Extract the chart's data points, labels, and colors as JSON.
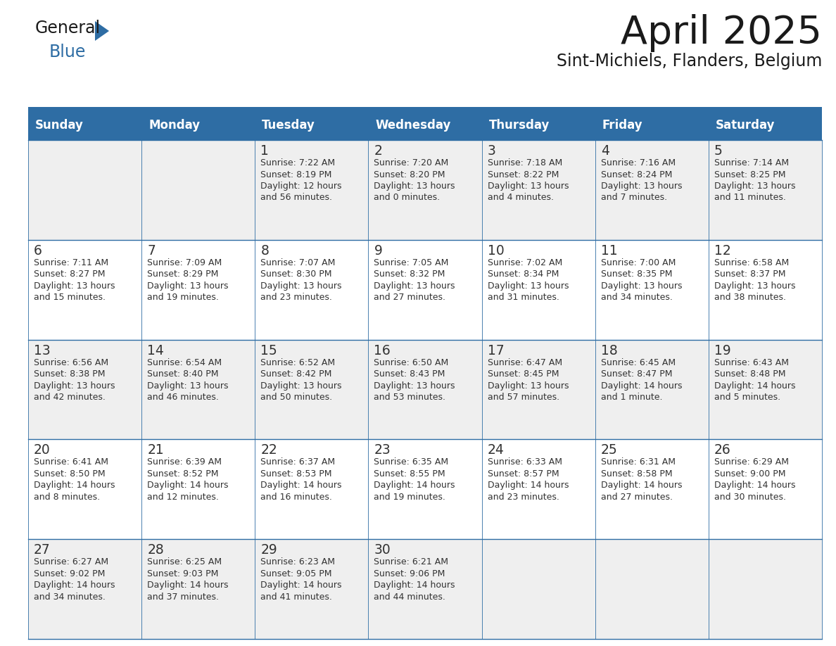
{
  "title": "April 2025",
  "subtitle": "Sint-Michiels, Flanders, Belgium",
  "header_color": "#2E6DA4",
  "header_text_color": "#FFFFFF",
  "day_names": [
    "Sunday",
    "Monday",
    "Tuesday",
    "Wednesday",
    "Thursday",
    "Friday",
    "Saturday"
  ],
  "bg_color": "#FFFFFF",
  "cell_bg_even": "#EFEFEF",
  "cell_bg_odd": "#FFFFFF",
  "grid_line_color": "#2E6DA4",
  "text_color": "#333333",
  "days": [
    {
      "date": 1,
      "col": 2,
      "row": 0,
      "sunrise": "7:22 AM",
      "sunset": "8:19 PM",
      "daylight": "12 hours and 56 minutes"
    },
    {
      "date": 2,
      "col": 3,
      "row": 0,
      "sunrise": "7:20 AM",
      "sunset": "8:20 PM",
      "daylight": "13 hours and 0 minutes"
    },
    {
      "date": 3,
      "col": 4,
      "row": 0,
      "sunrise": "7:18 AM",
      "sunset": "8:22 PM",
      "daylight": "13 hours and 4 minutes"
    },
    {
      "date": 4,
      "col": 5,
      "row": 0,
      "sunrise": "7:16 AM",
      "sunset": "8:24 PM",
      "daylight": "13 hours and 7 minutes"
    },
    {
      "date": 5,
      "col": 6,
      "row": 0,
      "sunrise": "7:14 AM",
      "sunset": "8:25 PM",
      "daylight": "13 hours and 11 minutes"
    },
    {
      "date": 6,
      "col": 0,
      "row": 1,
      "sunrise": "7:11 AM",
      "sunset": "8:27 PM",
      "daylight": "13 hours and 15 minutes"
    },
    {
      "date": 7,
      "col": 1,
      "row": 1,
      "sunrise": "7:09 AM",
      "sunset": "8:29 PM",
      "daylight": "13 hours and 19 minutes"
    },
    {
      "date": 8,
      "col": 2,
      "row": 1,
      "sunrise": "7:07 AM",
      "sunset": "8:30 PM",
      "daylight": "13 hours and 23 minutes"
    },
    {
      "date": 9,
      "col": 3,
      "row": 1,
      "sunrise": "7:05 AM",
      "sunset": "8:32 PM",
      "daylight": "13 hours and 27 minutes"
    },
    {
      "date": 10,
      "col": 4,
      "row": 1,
      "sunrise": "7:02 AM",
      "sunset": "8:34 PM",
      "daylight": "13 hours and 31 minutes"
    },
    {
      "date": 11,
      "col": 5,
      "row": 1,
      "sunrise": "7:00 AM",
      "sunset": "8:35 PM",
      "daylight": "13 hours and 34 minutes"
    },
    {
      "date": 12,
      "col": 6,
      "row": 1,
      "sunrise": "6:58 AM",
      "sunset": "8:37 PM",
      "daylight": "13 hours and 38 minutes"
    },
    {
      "date": 13,
      "col": 0,
      "row": 2,
      "sunrise": "6:56 AM",
      "sunset": "8:38 PM",
      "daylight": "13 hours and 42 minutes"
    },
    {
      "date": 14,
      "col": 1,
      "row": 2,
      "sunrise": "6:54 AM",
      "sunset": "8:40 PM",
      "daylight": "13 hours and 46 minutes"
    },
    {
      "date": 15,
      "col": 2,
      "row": 2,
      "sunrise": "6:52 AM",
      "sunset": "8:42 PM",
      "daylight": "13 hours and 50 minutes"
    },
    {
      "date": 16,
      "col": 3,
      "row": 2,
      "sunrise": "6:50 AM",
      "sunset": "8:43 PM",
      "daylight": "13 hours and 53 minutes"
    },
    {
      "date": 17,
      "col": 4,
      "row": 2,
      "sunrise": "6:47 AM",
      "sunset": "8:45 PM",
      "daylight": "13 hours and 57 minutes"
    },
    {
      "date": 18,
      "col": 5,
      "row": 2,
      "sunrise": "6:45 AM",
      "sunset": "8:47 PM",
      "daylight": "14 hours and 1 minute"
    },
    {
      "date": 19,
      "col": 6,
      "row": 2,
      "sunrise": "6:43 AM",
      "sunset": "8:48 PM",
      "daylight": "14 hours and 5 minutes"
    },
    {
      "date": 20,
      "col": 0,
      "row": 3,
      "sunrise": "6:41 AM",
      "sunset": "8:50 PM",
      "daylight": "14 hours and 8 minutes"
    },
    {
      "date": 21,
      "col": 1,
      "row": 3,
      "sunrise": "6:39 AM",
      "sunset": "8:52 PM",
      "daylight": "14 hours and 12 minutes"
    },
    {
      "date": 22,
      "col": 2,
      "row": 3,
      "sunrise": "6:37 AM",
      "sunset": "8:53 PM",
      "daylight": "14 hours and 16 minutes"
    },
    {
      "date": 23,
      "col": 3,
      "row": 3,
      "sunrise": "6:35 AM",
      "sunset": "8:55 PM",
      "daylight": "14 hours and 19 minutes"
    },
    {
      "date": 24,
      "col": 4,
      "row": 3,
      "sunrise": "6:33 AM",
      "sunset": "8:57 PM",
      "daylight": "14 hours and 23 minutes"
    },
    {
      "date": 25,
      "col": 5,
      "row": 3,
      "sunrise": "6:31 AM",
      "sunset": "8:58 PM",
      "daylight": "14 hours and 27 minutes"
    },
    {
      "date": 26,
      "col": 6,
      "row": 3,
      "sunrise": "6:29 AM",
      "sunset": "9:00 PM",
      "daylight": "14 hours and 30 minutes"
    },
    {
      "date": 27,
      "col": 0,
      "row": 4,
      "sunrise": "6:27 AM",
      "sunset": "9:02 PM",
      "daylight": "14 hours and 34 minutes"
    },
    {
      "date": 28,
      "col": 1,
      "row": 4,
      "sunrise": "6:25 AM",
      "sunset": "9:03 PM",
      "daylight": "14 hours and 37 minutes"
    },
    {
      "date": 29,
      "col": 2,
      "row": 4,
      "sunrise": "6:23 AM",
      "sunset": "9:05 PM",
      "daylight": "14 hours and 41 minutes"
    },
    {
      "date": 30,
      "col": 3,
      "row": 4,
      "sunrise": "6:21 AM",
      "sunset": "9:06 PM",
      "daylight": "14 hours and 44 minutes"
    }
  ]
}
